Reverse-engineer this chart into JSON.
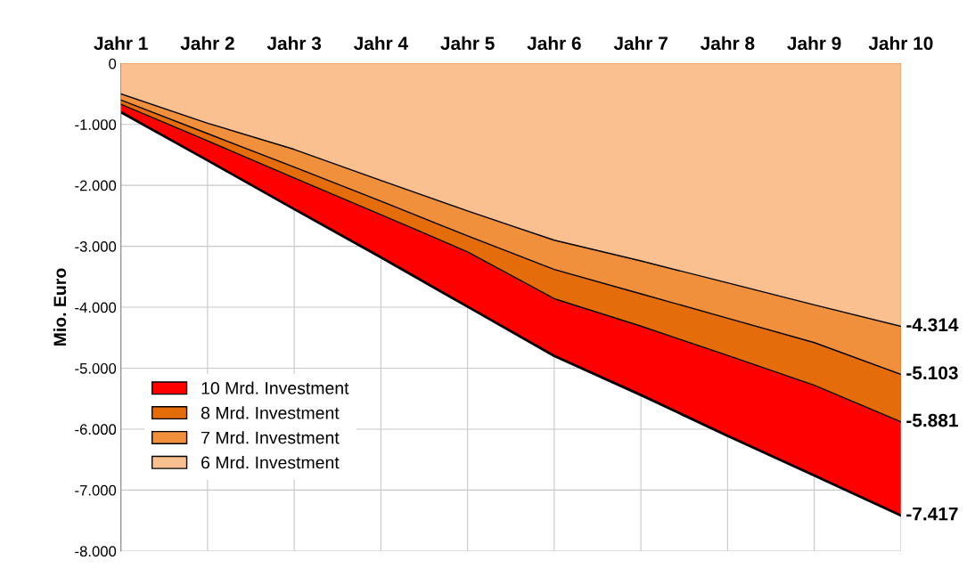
{
  "chart_data": {
    "type": "area",
    "ylabel": "Mio. Euro",
    "categories": [
      "Jahr 1",
      "Jahr 2",
      "Jahr 3",
      "Jahr 4",
      "Jahr 5",
      "Jahr 6",
      "Jahr 7",
      "Jahr 8",
      "Jahr 9",
      "Jahr 10"
    ],
    "series": [
      {
        "name": "10 Mrd. Investment",
        "color": "#ff0000",
        "values": [
          -800,
          -1590,
          -2390,
          -3180,
          -3990,
          -4800,
          -5440,
          -6110,
          -6760,
          -7417
        ],
        "value_labels": [
          null,
          null,
          null,
          null,
          null,
          null,
          null,
          null,
          null,
          "-7.417"
        ]
      },
      {
        "name": "8 Mrd. Investment",
        "color": "#e46c0a",
        "values": [
          -670,
          -1270,
          -1880,
          -2480,
          -3090,
          -3860,
          -4310,
          -4790,
          -5280,
          -5881
        ],
        "value_labels": [
          null,
          null,
          null,
          null,
          null,
          null,
          null,
          null,
          null,
          "-5.881"
        ]
      },
      {
        "name": "7 Mrd. Investment",
        "color": "#f0903c",
        "values": [
          -600,
          -1150,
          -1700,
          -2260,
          -2830,
          -3380,
          -3780,
          -4180,
          -4580,
          -5103
        ],
        "value_labels": [
          null,
          null,
          null,
          null,
          null,
          null,
          null,
          null,
          null,
          "-5.103"
        ]
      },
      {
        "name": "6 Mrd. Investment",
        "color": "#fac090",
        "values": [
          -500,
          -980,
          -1410,
          -1920,
          -2420,
          -2900,
          -3240,
          -3600,
          -3960,
          -4314
        ],
        "value_labels": [
          null,
          null,
          null,
          null,
          null,
          null,
          null,
          null,
          null,
          "-4.314"
        ]
      }
    ],
    "ylim": [
      -8000,
      0
    ],
    "yticks": [
      {
        "value": -8000,
        "label": "-8.000"
      },
      {
        "value": -7000,
        "label": "-7.000"
      },
      {
        "value": -6000,
        "label": "-6.000"
      },
      {
        "value": -5000,
        "label": "-5.000"
      },
      {
        "value": -4000,
        "label": "-4.000"
      },
      {
        "value": -3000,
        "label": "-3.000"
      },
      {
        "value": -2000,
        "label": "-2.000"
      },
      {
        "value": -1000,
        "label": "-1.000"
      },
      0
    ],
    "grid": true,
    "legend": "bottom left"
  }
}
